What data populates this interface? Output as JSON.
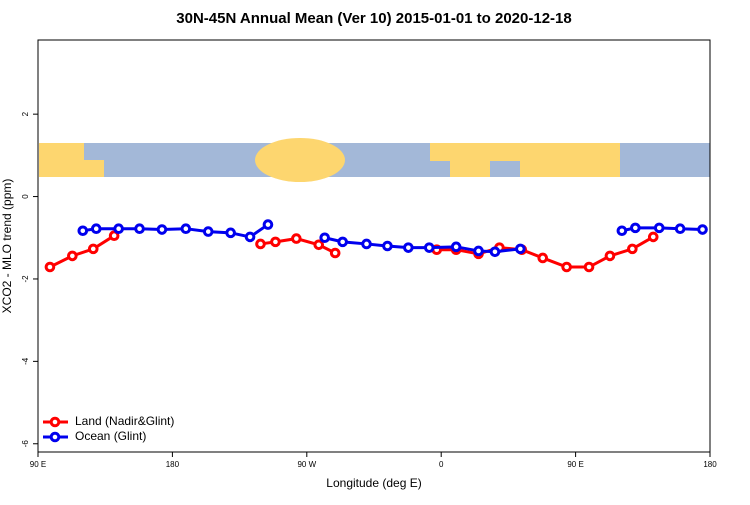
{
  "chart_data": {
    "type": "line",
    "title": "30N-45N Annual Mean (Ver 10)   2015-01-01 to 2020-12-18",
    "x_label": "Longitude (deg E)",
    "y_label": "XCO2 - MLO trend (ppm)",
    "xlim": [
      90,
      540
    ],
    "xticks": [
      {
        "value": 90,
        "label": "90 E"
      },
      {
        "value": 180,
        "label": "180"
      },
      {
        "value": 270,
        "label": "90 W"
      },
      {
        "value": 360,
        "label": "0"
      },
      {
        "value": 450,
        "label": "90 E"
      },
      {
        "value": 540,
        "label": "180"
      }
    ],
    "ylim": [
      -6.2,
      3.8
    ],
    "yticks": [
      -6,
      -4,
      -2,
      0,
      2
    ],
    "legend": "bottom-left",
    "series": [
      {
        "name": "Land (Nadir&Glint)",
        "color": "#ff0000",
        "x": [
          98,
          113,
          127,
          141,
          239,
          249,
          263,
          278,
          289,
          357,
          370,
          385,
          399,
          414,
          428,
          444,
          459,
          473,
          488,
          502
        ],
        "values": [
          -1.71,
          -1.44,
          -1.27,
          -0.95,
          -1.15,
          -1.1,
          -1.02,
          -1.17,
          -1.37,
          -1.29,
          -1.29,
          -1.39,
          -1.24,
          -1.29,
          -1.49,
          -1.71,
          -1.71,
          -1.44,
          -1.27,
          -0.98
        ]
      },
      {
        "name": "Ocean (Glint)",
        "color": "#0000ee",
        "x": [
          120,
          129,
          144,
          158,
          173,
          189,
          204,
          219,
          232,
          244,
          282,
          294,
          310,
          324,
          338,
          352,
          370,
          385,
          396,
          413,
          481,
          490,
          506,
          520,
          535
        ],
        "values": [
          -0.83,
          -0.78,
          -0.78,
          -0.78,
          -0.8,
          -0.78,
          -0.85,
          -0.88,
          -0.98,
          -0.68,
          -1.0,
          -1.1,
          -1.15,
          -1.2,
          -1.24,
          -1.24,
          -1.22,
          -1.32,
          -1.34,
          -1.27,
          -0.83,
          -0.76,
          -0.76,
          -0.78,
          -0.8
        ]
      }
    ]
  }
}
